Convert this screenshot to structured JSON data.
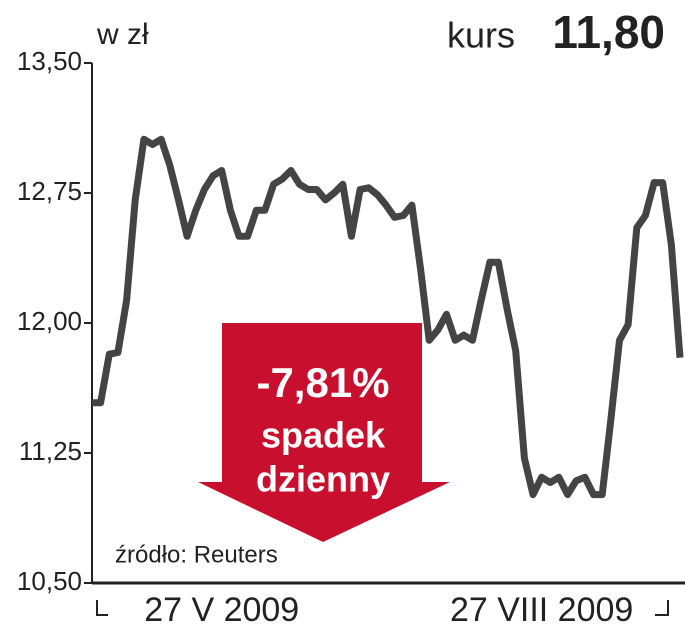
{
  "chart_data": {
    "type": "line",
    "unit_label": "w zł",
    "header_label": "kurs",
    "header_value": "11,80",
    "source": "źródło: Reuters",
    "annotation": {
      "value": "-7,81%",
      "line1": "spadek",
      "line2": "dzienny",
      "color": "#c8102e"
    },
    "categories": [
      null,
      null,
      null,
      null,
      null,
      null,
      null,
      null,
      null,
      null,
      null,
      null,
      null,
      null,
      null,
      "27 V 2009",
      null,
      null,
      null,
      null,
      null,
      null,
      null,
      null,
      null,
      null,
      null,
      null,
      null,
      null,
      null,
      null,
      null,
      null,
      null,
      null,
      null,
      null,
      null,
      null,
      null,
      null,
      null,
      null,
      null,
      null,
      null,
      null,
      null,
      null,
      null,
      null,
      "27 VIII 2009",
      null,
      null,
      null,
      null,
      null,
      null,
      null,
      null,
      null,
      null,
      null,
      null,
      null,
      null,
      null,
      null
    ],
    "series": [
      {
        "color": "#444444",
        "values": [
          11.54,
          11.54,
          11.82,
          11.83,
          12.13,
          12.71,
          13.06,
          13.03,
          13.06,
          12.91,
          12.71,
          12.5,
          12.65,
          12.77,
          12.85,
          12.88,
          12.65,
          12.5,
          12.5,
          12.65,
          12.65,
          12.8,
          12.83,
          12.88,
          12.8,
          12.77,
          12.77,
          12.71,
          12.75,
          12.8,
          12.5,
          12.77,
          12.78,
          12.74,
          12.68,
          12.61,
          12.62,
          12.68,
          12.31,
          11.9,
          11.96,
          12.05,
          11.9,
          11.93,
          11.9,
          12.13,
          12.35,
          12.35,
          12.08,
          11.84,
          11.22,
          11.01,
          11.11,
          11.08,
          11.11,
          11.01,
          11.09,
          11.11,
          11.01,
          11.01,
          11.44,
          11.9,
          11.99,
          12.55,
          12.62,
          12.81,
          12.81,
          12.45,
          11.8
        ]
      }
    ],
    "ylim": [
      10.5,
      13.5
    ],
    "yticks": [
      {
        "value": 10.5,
        "label": "10,50"
      },
      {
        "value": 11.25,
        "label": "11,25"
      },
      {
        "value": 12.0,
        "label": "12,00"
      },
      {
        "value": 12.75,
        "label": "12,75"
      },
      {
        "value": 13.5,
        "label": "13,50"
      }
    ],
    "grid": false
  }
}
